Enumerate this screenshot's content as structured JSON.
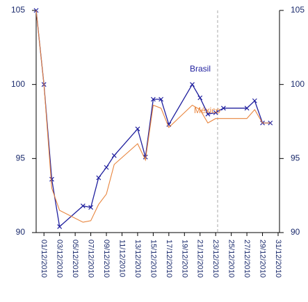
{
  "chart_data": {
    "type": "line",
    "x": [
      0,
      1,
      2,
      3,
      6,
      7,
      8,
      9,
      10,
      13,
      14,
      15,
      16,
      17,
      20,
      21,
      22,
      23,
      24,
      27,
      28,
      29,
      30
    ],
    "xlim": [
      0,
      31
    ],
    "xticks": [
      {
        "value": 1,
        "label": "01/12/2010"
      },
      {
        "value": 3,
        "label": "03/12/2010"
      },
      {
        "value": 5,
        "label": "05/12/2010"
      },
      {
        "value": 7,
        "label": "07/12/2010"
      },
      {
        "value": 9,
        "label": "09/12/2010"
      },
      {
        "value": 11,
        "label": "11/12/2010"
      },
      {
        "value": 13,
        "label": "13/12/2010"
      },
      {
        "value": 15,
        "label": "15/12/2010"
      },
      {
        "value": 17,
        "label": "17/12/2010"
      },
      {
        "value": 19,
        "label": "19/12/2010"
      },
      {
        "value": 21,
        "label": "21/12/2010"
      },
      {
        "value": 23,
        "label": "23/12/2010"
      },
      {
        "value": 25,
        "label": "25/12/2010"
      },
      {
        "value": 27,
        "label": "27/12/2010"
      },
      {
        "value": 29,
        "label": "29/12/2010"
      },
      {
        "value": 31,
        "label": "31/12/2010"
      }
    ],
    "ylim": [
      90,
      105
    ],
    "yticks": [
      90,
      95,
      100,
      105
    ],
    "y2lim": [
      90,
      105
    ],
    "y2ticks": [
      90,
      95,
      100,
      105
    ],
    "series": [
      {
        "name": "Brasil",
        "color": "#1f1f9e",
        "markers": true,
        "values": [
          105,
          100,
          93.6,
          90.4,
          91.8,
          91.7,
          93.7,
          94.4,
          95.2,
          97.0,
          95.1,
          99.0,
          99.0,
          97.3,
          100.0,
          99.1,
          98.0,
          98.1,
          98.4,
          98.4,
          98.9,
          97.4,
          97.4
        ]
      },
      {
        "name": "México",
        "color": "#e8843c",
        "markers": false,
        "values": [
          105,
          100,
          93.0,
          91.5,
          90.7,
          90.8,
          91.9,
          92.6,
          94.6,
          96.0,
          94.9,
          98.6,
          98.4,
          97.1,
          98.6,
          98.3,
          97.4,
          97.7,
          97.7,
          97.7,
          98.3,
          97.4,
          97.4
        ]
      }
    ]
  }
}
